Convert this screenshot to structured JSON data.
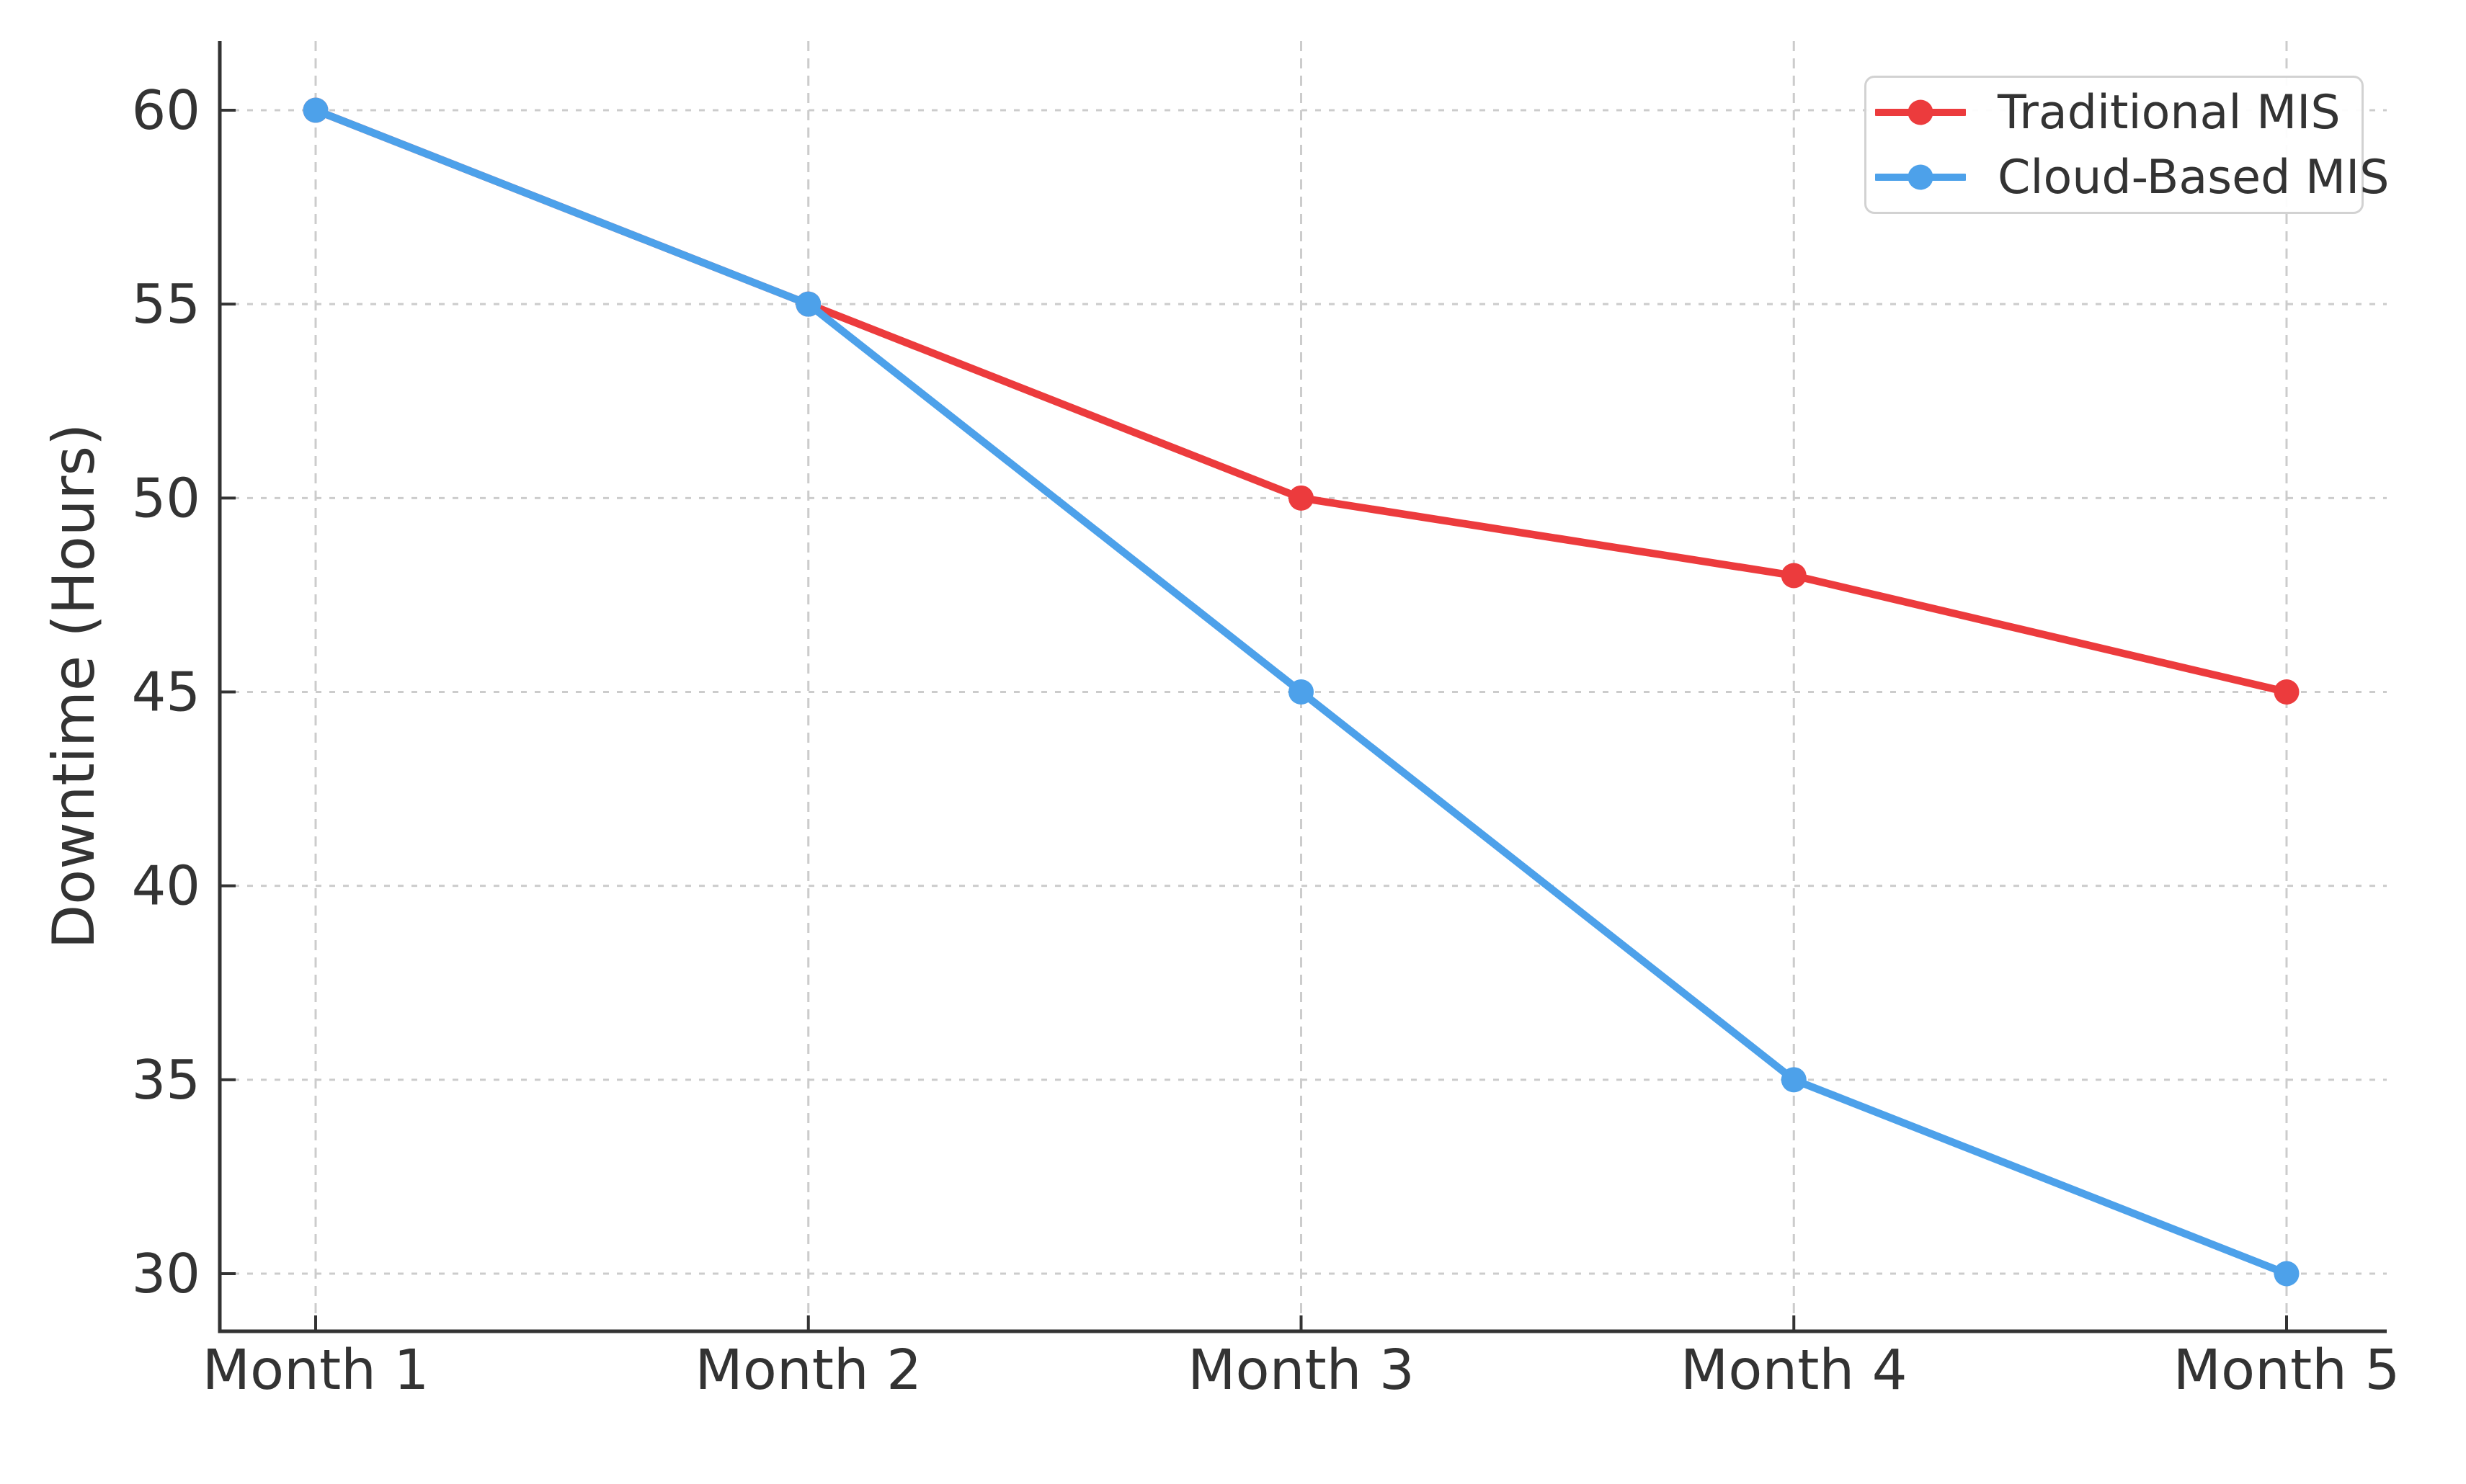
{
  "figure": {
    "background": "#ffffff",
    "text_color": "#333333",
    "axis_color": "#333333",
    "grid_color": "#cccccc",
    "legend_border_color": "#d2d2d2"
  },
  "chart_data": {
    "type": "line",
    "title": "",
    "xlabel": "",
    "ylabel": "Downtime (Hours)",
    "categories": [
      "Month 1",
      "Month 2",
      "Month 3",
      "Month 4",
      "Month 5"
    ],
    "series": [
      {
        "name": "Traditional MIS",
        "color": "#ec3b3d",
        "values": [
          60,
          55,
          50,
          48,
          45
        ]
      },
      {
        "name": "Cloud-Based MIS",
        "color": "#4da1ea",
        "values": [
          60,
          55,
          45,
          35,
          30
        ]
      }
    ],
    "yticks": [
      30,
      35,
      40,
      45,
      50,
      55,
      60
    ],
    "ylim": [
      28.5,
      61.8
    ],
    "grid": true,
    "legend_position": "upper right",
    "marker": "circle"
  }
}
